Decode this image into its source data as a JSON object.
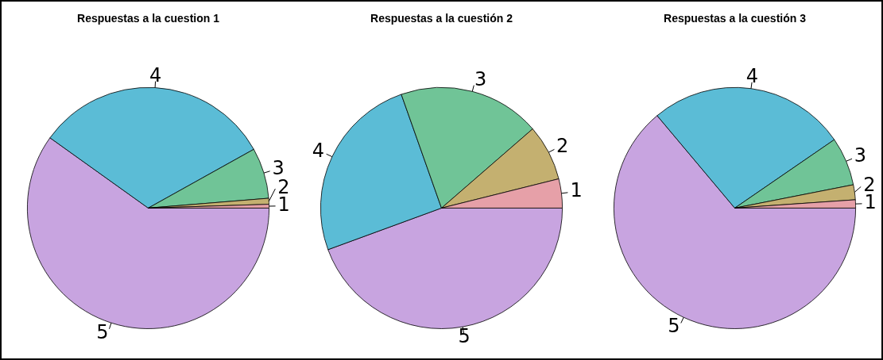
{
  "chart_data": [
    {
      "type": "pie",
      "title": "Respuestas a la cuestion 1",
      "categories": [
        "1",
        "2",
        "3",
        "4",
        "5"
      ],
      "values": [
        0.5,
        0.8,
        6.8,
        32,
        59.9
      ],
      "colors": [
        "#e6a0a8",
        "#c4b070",
        "#70c497",
        "#5bbcd6",
        "#c8a4e0"
      ],
      "legend": false
    },
    {
      "type": "pie",
      "title": "Respuestas a la cuestión 2",
      "categories": [
        "1",
        "2",
        "3",
        "4",
        "5"
      ],
      "values": [
        3.9,
        7.5,
        19,
        25.2,
        44.4
      ],
      "colors": [
        "#e6a0a8",
        "#c4b070",
        "#70c497",
        "#5bbcd6",
        "#c8a4e0"
      ],
      "legend": false
    },
    {
      "type": "pie",
      "title": "Respuestas a la cuestión 3",
      "categories": [
        "1",
        "2",
        "3",
        "4",
        "5"
      ],
      "values": [
        1.1,
        2.0,
        6.5,
        26.5,
        63.9
      ],
      "colors": [
        "#e6a0a8",
        "#c4b070",
        "#70c497",
        "#5bbcd6",
        "#c8a4e0"
      ],
      "legend": false
    }
  ]
}
